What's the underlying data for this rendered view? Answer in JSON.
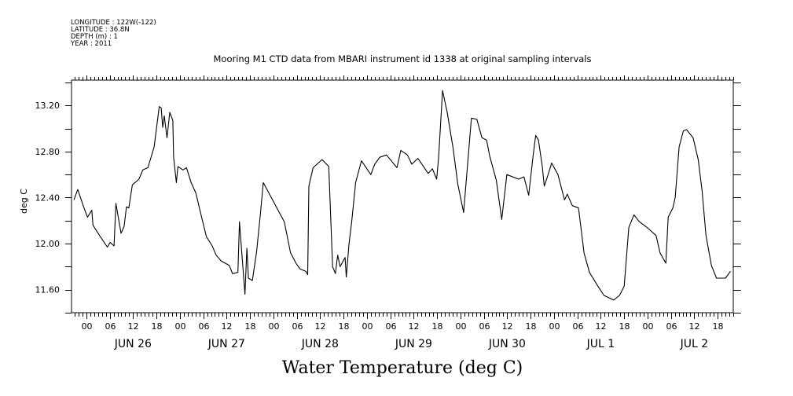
{
  "header": {
    "longitude": "LONGITUDE : 122W(-122)",
    "latitude": "LATITUDE : 36.8N",
    "depth": "DEPTH (m) : 1",
    "year": "YEAR : 2011"
  },
  "chart_data": {
    "type": "line",
    "title": "Mooring M1 CTD data from MBARI instrument id 1338 at original sampling intervals",
    "xlabel": "Water Temperature (deg C)",
    "ylabel": "deg C",
    "x_units": "hours since JUN 26 00:00 (2011)",
    "xlim": [
      -3.8,
      166.0
    ],
    "ylim": [
      11.4,
      13.42
    ],
    "yticks": [
      "11.60",
      "12.00",
      "12.40",
      "12.80",
      "13.20"
    ],
    "hour_tick_labels": [
      "00",
      "06",
      "12",
      "18"
    ],
    "day_labels": [
      "JUN 26",
      "JUN 27",
      "JUN 28",
      "JUN 29",
      "JUN 30",
      "JUL  1",
      "JUL  2"
    ],
    "grid": false,
    "line_color": "#000000",
    "series": [
      {
        "name": "Water Temperature",
        "x": [
          -3.2,
          -2.2,
          -0.7,
          0.3,
          1.4,
          1.7,
          3.4,
          5.4,
          6.1,
          7.1,
          7.6,
          8.9,
          9.7,
          10.3,
          10.9,
          11.8,
          13.5,
          14.5,
          15.8,
          17.4,
          18.7,
          19.2,
          19.6,
          20.0,
          20.7,
          21.4,
          22.2,
          22.4,
          23.1,
          23.5,
          24.8,
          25.7,
          26.9,
          28.1,
          29.3,
          30.8,
          32.3,
          33.3,
          34.6,
          36.7,
          37.5,
          38.9,
          39.3,
          40.0,
          40.7,
          41.2,
          41.6,
          42.6,
          43.7,
          44.7,
          45.4,
          50.8,
          52.4,
          53.8,
          54.8,
          56.3,
          56.8,
          57.1,
          58.2,
          60.5,
          62.2,
          63.2,
          63.9,
          64.5,
          65.1,
          66.4,
          66.7,
          67.4,
          68.1,
          69.1,
          70.6,
          73.0,
          74.0,
          75.3,
          77.0,
          79.7,
          80.7,
          82.4,
          83.5,
          85.1,
          87.7,
          88.8,
          89.9,
          90.4,
          91.4,
          92.6,
          94.1,
          95.3,
          96.8,
          98.8,
          100.2,
          101.5,
          102.7,
          103.5,
          105.2,
          106.6,
          107.9,
          110.9,
          112.3,
          113.5,
          114.6,
          115.3,
          116.0,
          117.0,
          117.5,
          118.3,
          119.4,
          121.0,
          122.7,
          123.4,
          124.7,
          126.3,
          127.7,
          129.1,
          131.1,
          132.8,
          135.3,
          136.8,
          138.0,
          139.2,
          140.5,
          141.9,
          143.9,
          146.2,
          147.2,
          148.7,
          149.3,
          150.5,
          151.1,
          152.1,
          153.2,
          154.0,
          155.7,
          157.0,
          158.0,
          159.0,
          160.4,
          161.7,
          164.0,
          165.3
        ],
        "y": [
          12.38,
          12.47,
          12.32,
          12.23,
          12.29,
          12.16,
          12.07,
          11.97,
          12.01,
          11.98,
          12.35,
          12.09,
          12.15,
          12.32,
          12.31,
          12.51,
          12.56,
          12.64,
          12.66,
          12.84,
          13.19,
          13.18,
          13.01,
          13.11,
          12.92,
          13.14,
          13.07,
          12.75,
          12.53,
          12.67,
          12.64,
          12.66,
          12.53,
          12.44,
          12.27,
          12.06,
          11.98,
          11.9,
          11.85,
          11.81,
          11.74,
          11.75,
          12.19,
          11.87,
          11.56,
          11.96,
          11.7,
          11.68,
          11.93,
          12.27,
          12.53,
          12.19,
          11.92,
          11.83,
          11.78,
          11.76,
          11.73,
          12.5,
          12.66,
          12.73,
          12.67,
          11.8,
          11.74,
          11.9,
          11.8,
          11.88,
          11.71,
          12.0,
          12.19,
          12.53,
          12.72,
          12.6,
          12.69,
          12.75,
          12.77,
          12.66,
          12.81,
          12.77,
          12.69,
          12.74,
          12.61,
          12.65,
          12.56,
          12.75,
          13.33,
          13.14,
          12.83,
          12.52,
          12.27,
          13.09,
          13.08,
          12.92,
          12.9,
          12.76,
          12.55,
          12.21,
          12.6,
          12.56,
          12.58,
          12.42,
          12.75,
          12.94,
          12.9,
          12.67,
          12.5,
          12.58,
          12.7,
          12.6,
          12.38,
          12.43,
          12.33,
          12.31,
          11.92,
          11.75,
          11.64,
          11.55,
          11.51,
          11.55,
          11.63,
          12.14,
          12.25,
          12.19,
          12.14,
          12.07,
          11.92,
          11.83,
          12.23,
          12.31,
          12.4,
          12.84,
          12.98,
          12.99,
          12.92,
          12.73,
          12.46,
          12.07,
          11.81,
          11.7,
          11.7,
          11.76
        ]
      }
    ]
  }
}
